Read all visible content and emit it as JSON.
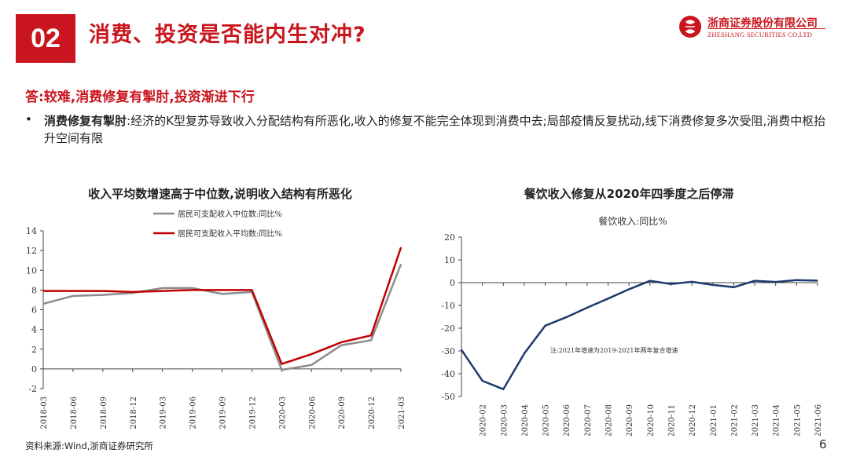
{
  "header": {
    "section_number": "02",
    "title": "消费、投资是否能内生对冲?",
    "logo_cn": "浙商证券股份有限公司",
    "logo_en": "ZHESHANG SECURITIES CO.LTD"
  },
  "answer": "答:较难,消费修复有掣肘,投资渐进下行",
  "bullet": {
    "bold": "消费修复有掣肘",
    "text": ":经济的K型复苏导致收入分配结构有所恶化,收入的修复不能完全体现到消费中去;局部疫情反复扰动,线下消费修复多次受阻,消费中枢抬升空间有限"
  },
  "colors": {
    "brand_red": "#c9151e",
    "gray_series": "#8c8c8c",
    "red_series": "#c00000",
    "navy_series": "#1f3a6e"
  },
  "chart_data": [
    {
      "type": "line",
      "title": "收入平均数增速高于中位数,说明收入结构有所恶化",
      "categories": [
        "2018-03",
        "2018-06",
        "2018-09",
        "2018-12",
        "2019-03",
        "2019-06",
        "2019-09",
        "2019-12",
        "2020-03",
        "2020-06",
        "2020-09",
        "2020-12",
        "2021-03"
      ],
      "series": [
        {
          "name": "居民可支配收入中位数:同比%",
          "color": "#8c8c8c",
          "values": [
            6.6,
            7.4,
            7.5,
            7.7,
            8.2,
            8.2,
            7.6,
            7.8,
            -0.1,
            0.4,
            2.4,
            2.9,
            10.6
          ]
        },
        {
          "name": "居民可支配收入平均数:同比%",
          "color": "#c00000",
          "values": [
            7.9,
            7.9,
            7.9,
            7.8,
            7.9,
            8.0,
            8.0,
            8.0,
            0.5,
            1.5,
            2.7,
            3.4,
            12.3
          ]
        }
      ],
      "ylim": [
        -2,
        14
      ],
      "yticks": [
        -2,
        0,
        2,
        4,
        6,
        8,
        10,
        12,
        14
      ],
      "legend": "top-center"
    },
    {
      "type": "line",
      "title": "餐饮收入修复从2020年四季度之后停滞",
      "subtitle": "餐饮收入:同比%",
      "x": [
        "2020-01",
        "2020-02",
        "2020-03",
        "2020-04",
        "2020-05",
        "2020-06",
        "2020-07",
        "2020-08",
        "2020-09",
        "2020-10",
        "2020-11",
        "2020-12",
        "2021-01",
        "2021-02",
        "2021-03",
        "2021-04",
        "2021-05",
        "2021-06"
      ],
      "xticks": [
        "2020-02",
        "2020-03",
        "2020-04",
        "2020-05",
        "2020-06",
        "2020-07",
        "2020-08",
        "2020-09",
        "2020-10",
        "2020-11",
        "2020-12",
        "2021-01",
        "2021-02",
        "2021-03",
        "2021-04",
        "2021-05",
        "2021-06"
      ],
      "series": [
        {
          "name": "餐饮收入:同比%",
          "color": "#1f3a6e",
          "values": [
            -29.5,
            -43.1,
            -46.8,
            -31.1,
            -18.9,
            -15.2,
            -11.0,
            -7.0,
            -2.9,
            0.8,
            -0.6,
            0.4,
            -1.0,
            -2.0,
            0.8,
            0.3,
            1.1,
            0.9
          ]
        }
      ],
      "ylim": [
        -50,
        20
      ],
      "yticks": [
        20,
        10,
        0,
        -10,
        -20,
        -30,
        -40,
        -50
      ],
      "annotation": "注:2021年增速为2019-2021年两年复合增速"
    }
  ],
  "footer": {
    "source": "资料来源:Wind,浙商证券研究所",
    "page": "6"
  }
}
